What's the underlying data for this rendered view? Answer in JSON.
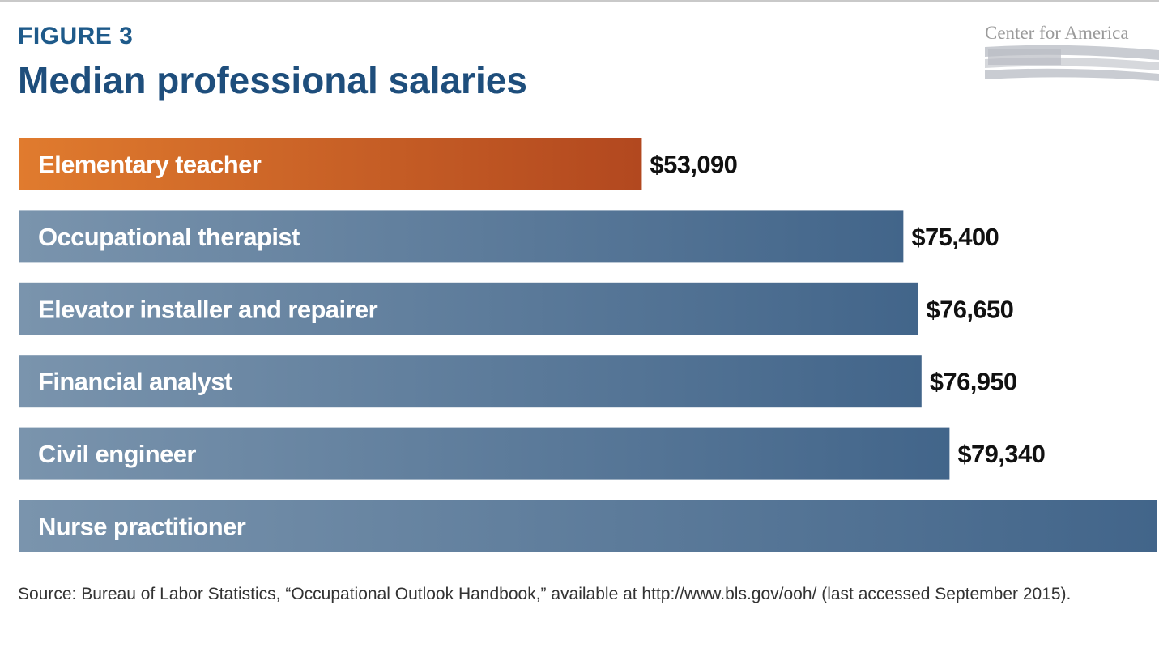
{
  "figure": {
    "label": "FIGURE 3",
    "title": "Median professional salaries",
    "logo_text": "Center for America",
    "source": "Source: Bureau of Labor Statistics, “Occupational Outlook Handbook,” available at http://www.bls.gov/ooh/ (last accessed September 2015)."
  },
  "chart_data": {
    "type": "bar",
    "orientation": "horizontal",
    "title": "Median professional salaries",
    "categories": [
      "Elementary teacher",
      "Occupational therapist",
      "Elevator installer and repairer",
      "Financial analyst",
      "Civil engineer",
      "Nurse practitioner"
    ],
    "values": [
      53090,
      75400,
      76650,
      76950,
      79340,
      97000
    ],
    "value_labels": [
      "$53,090",
      "$75,400",
      "$76,650",
      "$76,950",
      "$79,340",
      ""
    ],
    "highlight_index": 0,
    "xlim": [
      0,
      97000
    ],
    "colors": {
      "highlight_start": "#e07b2e",
      "highlight_end": "#b2481f",
      "bar_start": "#7a94ad",
      "bar_end": "#42658a",
      "category_text": "#ffffff",
      "value_text": "#111111"
    }
  }
}
